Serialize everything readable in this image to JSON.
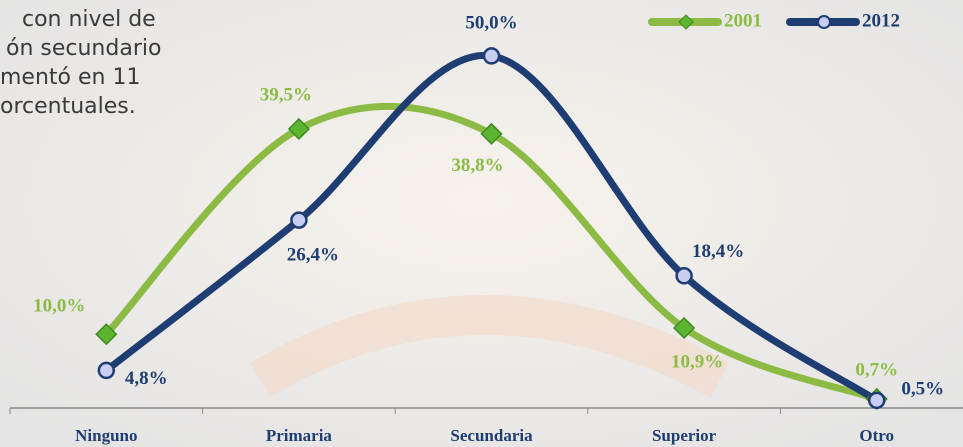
{
  "chart_data": {
    "type": "line",
    "annotation": [
      "con nivel de",
      "ón secundario",
      "mentó en 11",
      "orcentuales."
    ],
    "categories": [
      "Ninguno",
      "Primaria",
      "Secundaria",
      "Superior",
      "Otro"
    ],
    "series": [
      {
        "name": "2001",
        "color": "#8cbb45",
        "values": [
          10.0,
          39.5,
          38.8,
          10.9,
          0.7
        ],
        "value_labels": [
          "10,0%",
          "39,5%",
          "38,8%",
          "10,9%",
          "0,7%"
        ]
      },
      {
        "name": "2012",
        "color": "#1e3d72",
        "values": [
          4.8,
          26.4,
          50.0,
          18.4,
          0.5
        ],
        "value_labels": [
          "4,8%",
          "26,4%",
          "50,0%",
          "18,4%",
          "0,5%"
        ]
      }
    ],
    "ylim": [
      -0.6,
      52
    ],
    "legend": "top-right"
  }
}
